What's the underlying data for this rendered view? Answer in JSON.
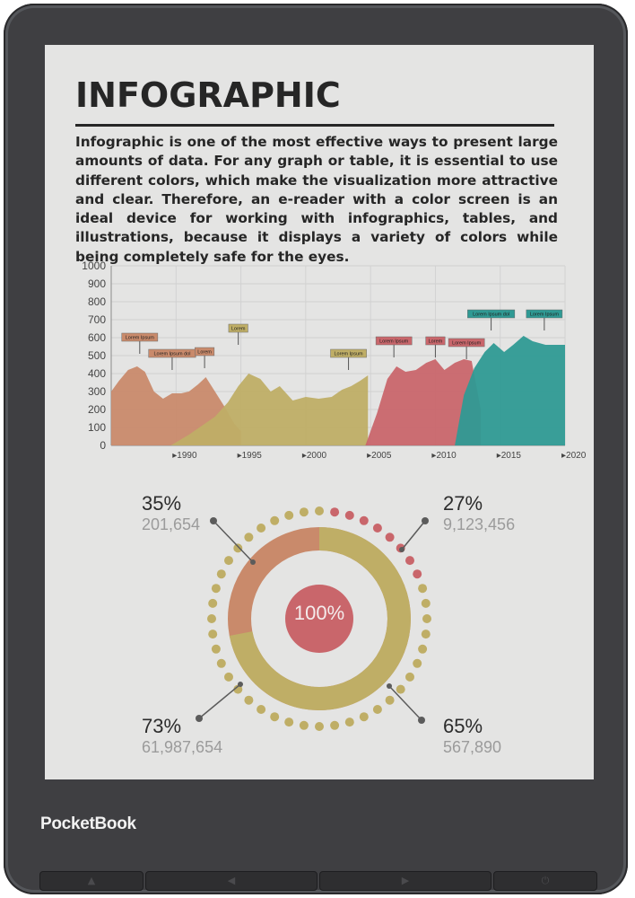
{
  "device": {
    "brand": "PocketBook",
    "buttons": [
      {
        "name": "home-button",
        "glyph": "▲"
      },
      {
        "name": "page-back-button",
        "glyph": "◀"
      },
      {
        "name": "page-forward-button",
        "glyph": "▶"
      },
      {
        "name": "power-button",
        "glyph": "⏻"
      }
    ]
  },
  "article": {
    "title": "INFOGRAPHIC",
    "body": "Infographic is one of the most effective ways to present large amounts of data. For any graph or table, it is essential to use different colors, which make the visualization more attractive and clear. Therefore, an e-reader with a color screen is an ideal device for working with infographics, tables, and illustrations, because it displays a variety of colors while being completely safe for the eyes."
  },
  "colors": {
    "orange": "#c98a6b",
    "olive": "#bfae66",
    "pink": "#c9666b",
    "teal": "#2f9a94",
    "screen": "#e4e4e3"
  },
  "chart_data": {
    "type": "area",
    "ylim": [
      0,
      1000
    ],
    "yticks": [
      "0",
      "100",
      "200",
      "300",
      "400",
      "500",
      "600",
      "700",
      "800",
      "900",
      "1000"
    ],
    "xticks": [
      "1990",
      "1995",
      "2000",
      "2005",
      "2010",
      "2015",
      "2020"
    ],
    "xlim": [
      1985,
      2020
    ],
    "grid": true,
    "series": [
      {
        "color": "#c98a6b",
        "x": [
          1985,
          1985.6,
          1986.3,
          1987,
          1987.6,
          1988.3,
          1989,
          1989.7,
          1990.4,
          1991,
          1991.7,
          1992.3,
          1993,
          1993.7,
          1994.5,
          1995
        ],
        "y": [
          300,
          360,
          420,
          440,
          410,
          300,
          260,
          290,
          290,
          300,
          340,
          380,
          300,
          220,
          120,
          80
        ]
      },
      {
        "color": "#bfae66",
        "x": [
          1989.6,
          1991,
          1992,
          1993,
          1994,
          1994.8,
          1995.6,
          1996.5,
          1997.3,
          1998,
          1999,
          2000,
          2001,
          2002,
          2002.8,
          2003.5,
          2004.2,
          2004.8
        ],
        "y": [
          0,
          60,
          110,
          160,
          240,
          330,
          400,
          370,
          300,
          330,
          250,
          270,
          260,
          270,
          310,
          330,
          360,
          390
        ]
      },
      {
        "color": "#c9666b",
        "x": [
          2004.6,
          2005.5,
          2006.3,
          2007,
          2007.7,
          2008.5,
          2009.3,
          2010,
          2010.7,
          2011.5,
          2012.2,
          2012.8,
          2013.5
        ],
        "y": [
          0,
          180,
          370,
          440,
          410,
          420,
          460,
          480,
          420,
          460,
          480,
          470,
          200
        ]
      },
      {
        "color": "#2f9a94",
        "x": [
          2011.5,
          2012.2,
          2013,
          2013.8,
          2014.5,
          2015.3,
          2016,
          2016.8,
          2017.5,
          2018.5,
          2019.3,
          2020,
          2020
        ],
        "y": [
          0,
          280,
          430,
          520,
          570,
          520,
          560,
          610,
          580,
          560,
          560,
          560,
          0
        ]
      }
    ],
    "flags": [
      {
        "x": 1987.2,
        "y": 580,
        "label": "Lorem Ipsum",
        "color": "#c98a6b"
      },
      {
        "x": 1989.7,
        "y": 490,
        "label": "Lorem Ipsum dol",
        "color": "#c98a6b"
      },
      {
        "x": 1992.2,
        "y": 500,
        "label": "Lorem",
        "color": "#c98a6b"
      },
      {
        "x": 1994.8,
        "y": 630,
        "label": "Lorem",
        "color": "#bfae66"
      },
      {
        "x": 2003.3,
        "y": 490,
        "label": "Lorem Ipsum",
        "color": "#bfae66"
      },
      {
        "x": 2006.8,
        "y": 560,
        "label": "Lorem Ipsum",
        "color": "#c9666b"
      },
      {
        "x": 2010,
        "y": 560,
        "label": "Lorem",
        "color": "#c9666b"
      },
      {
        "x": 2012.4,
        "y": 550,
        "label": "Lorem Ipsum",
        "color": "#c9666b"
      },
      {
        "x": 2014.3,
        "y": 710,
        "label": "Lorem Ipsum dol",
        "color": "#2f9a94"
      },
      {
        "x": 2018.4,
        "y": 710,
        "label": "Lorem Ipsum",
        "color": "#2f9a94"
      }
    ]
  },
  "donut": {
    "center_label": "100%",
    "stats": [
      {
        "pct": "35%",
        "value": "201,654"
      },
      {
        "pct": "27%",
        "value": "9,123,456"
      },
      {
        "pct": "73%",
        "value": "61,987,654"
      },
      {
        "pct": "65%",
        "value": "567,890"
      }
    ],
    "ring_share_olive": 0.72
  }
}
